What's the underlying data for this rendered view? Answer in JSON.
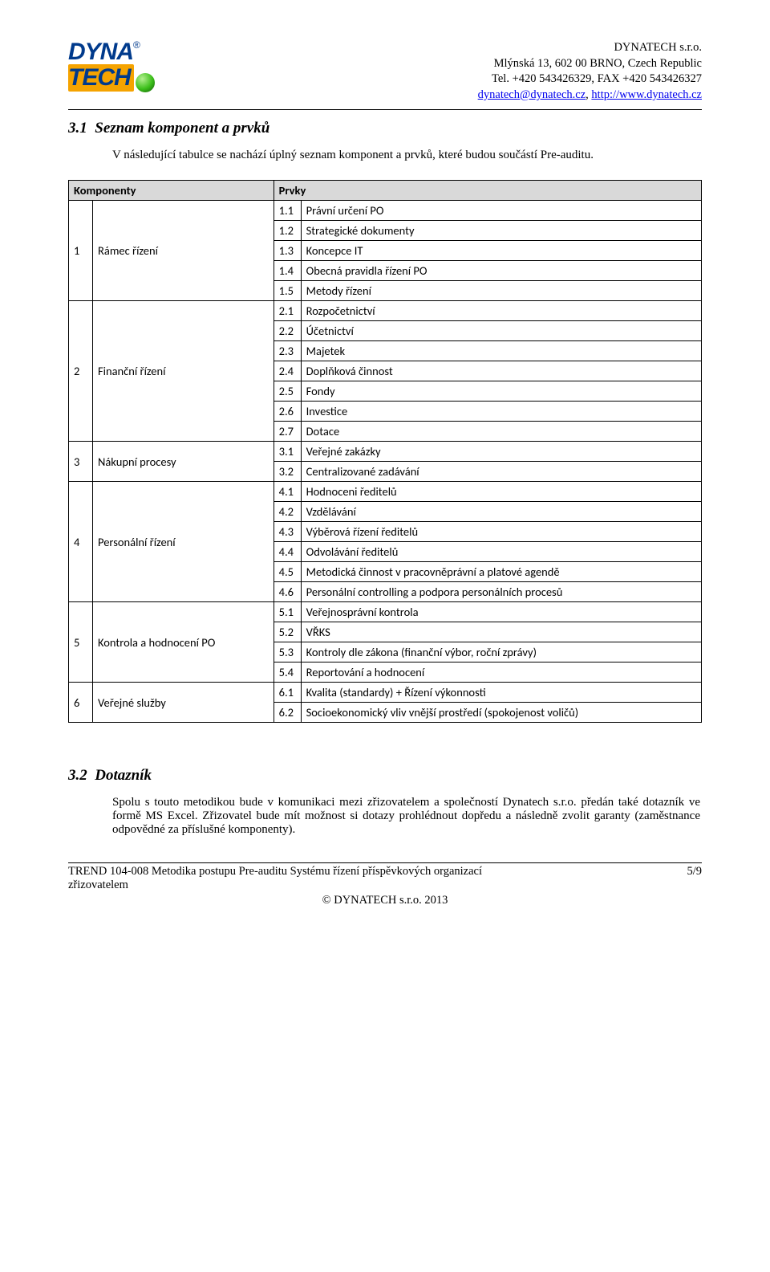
{
  "header": {
    "company": "DYNATECH s.r.o.",
    "address": "Mlýnská 13, 602 00 BRNO, Czech Republic",
    "phone": "Tel. +420 543426329, FAX +420 543426327",
    "email": "dynatech@dynatech.cz",
    "sep": ", ",
    "web": "http://www.dynatech.cz",
    "logo_dyna": "DYNA",
    "logo_reg": "®",
    "logo_tech": "TECH"
  },
  "section31": {
    "number": "3.1",
    "title": "Seznam komponent a prvků",
    "intro": "V následující tabulce se nachází úplný seznam komponent a prvků, které budou součástí Pre-auditu."
  },
  "table": {
    "th_komponenty": "Komponenty",
    "th_prvky": "Prvky",
    "rows": [
      {
        "num": "1",
        "comp": "Rámec řízení",
        "span": 5,
        "prvky": [
          {
            "n": "1.1",
            "t": "Právní určení PO"
          },
          {
            "n": "1.2",
            "t": "Strategické dokumenty"
          },
          {
            "n": "1.3",
            "t": "Koncepce IT"
          },
          {
            "n": "1.4",
            "t": "Obecná pravidla řízení PO"
          },
          {
            "n": "1.5",
            "t": "Metody řízení"
          }
        ]
      },
      {
        "num": "2",
        "comp": "Finanční řízení",
        "span": 7,
        "prvky": [
          {
            "n": "2.1",
            "t": "Rozpočetnictví"
          },
          {
            "n": "2.2",
            "t": "Účetnictví"
          },
          {
            "n": "2.3",
            "t": "Majetek"
          },
          {
            "n": "2.4",
            "t": "Doplňková činnost"
          },
          {
            "n": "2.5",
            "t": "Fondy"
          },
          {
            "n": "2.6",
            "t": "Investice"
          },
          {
            "n": "2.7",
            "t": "Dotace"
          }
        ]
      },
      {
        "num": "3",
        "comp": "Nákupní procesy",
        "span": 2,
        "prvky": [
          {
            "n": "3.1",
            "t": "Veřejné zakázky"
          },
          {
            "n": "3.2",
            "t": "Centralizované zadávání"
          }
        ]
      },
      {
        "num": "4",
        "comp": "Personální řízení",
        "span": 6,
        "prvky": [
          {
            "n": "4.1",
            "t": "Hodnoceni ředitelů"
          },
          {
            "n": "4.2",
            "t": "Vzdělávání"
          },
          {
            "n": "4.3",
            "t": "Výběrová řízení ředitelů"
          },
          {
            "n": "4.4",
            "t": "Odvolávání ředitelů"
          },
          {
            "n": "4.5",
            "t": "Metodická činnost v pracovněprávní a platové agendě"
          },
          {
            "n": "4.6",
            "t": "Personální controlling a podpora personálních procesů"
          }
        ]
      },
      {
        "num": "5",
        "comp": "Kontrola a hodnocení PO",
        "span": 4,
        "prvky": [
          {
            "n": "5.1",
            "t": "Veřejnosprávní kontrola"
          },
          {
            "n": "5.2",
            "t": "VŘKS"
          },
          {
            "n": "5.3",
            "t": "Kontroly dle zákona (finanční výbor, roční zprávy)"
          },
          {
            "n": "5.4",
            "t": "Reportování a hodnocení"
          }
        ]
      },
      {
        "num": "6",
        "comp": "Veřejné služby",
        "span": 2,
        "prvky": [
          {
            "n": "6.1",
            "t": "Kvalita (standardy) + Řízení výkonnosti"
          },
          {
            "n": "6.2",
            "t": "Socioekonomický vliv vnější prostředí (spokojenost voličů)"
          }
        ]
      }
    ]
  },
  "section32": {
    "number": "3.2",
    "title": "Dotazník",
    "para": "Spolu s touto metodikou bude v komunikaci mezi zřizovatelem a společností Dynatech s.r.o. předán také dotazník ve formě MS Excel. Zřizovatel bude mít možnost si dotazy prohlédnout dopředu a následně zvolit garanty (zaměstnance odpovědné za příslušné komponenty)."
  },
  "footer": {
    "left_line1": "TREND 104-008 Metodika postupu Pre-auditu Systému řízení příspěvkových organizací",
    "left_line2": "zřizovatelem",
    "center": "© DYNATECH s.r.o. 2013",
    "page": "5/9"
  },
  "colors": {
    "link": "#0000ee",
    "th_bg": "#d9d9d9",
    "text": "#000000",
    "logo_blue": "#003a8c",
    "logo_orange": "#f5a300"
  }
}
